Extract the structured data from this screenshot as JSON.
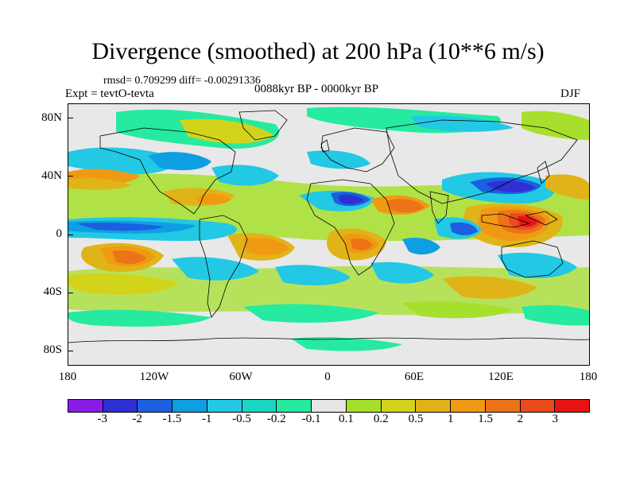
{
  "title": "Divergence (smoothed) at 200 hPa (10**6 m/s)",
  "stats": "rmsd= 0.709299 diff= -0.00291336",
  "experiment": "Expt = tevtO-tevta",
  "period": "0088kyr BP - 0000kyr BP",
  "season": "DJF",
  "lat_labels": [
    "80N",
    "40N",
    "0",
    "40S",
    "80S"
  ],
  "lon_labels": [
    "180",
    "120W",
    "60W",
    "0",
    "60E",
    "120E",
    "180"
  ],
  "colorbar": {
    "colors": [
      "#8a1ce8",
      "#2e2fd4",
      "#1c5fe0",
      "#0e9fe2",
      "#22c8e4",
      "#18d8c4",
      "#26eaa0",
      "#e6e6e6",
      "#a6e02c",
      "#d2d41c",
      "#e0b418",
      "#f09a14",
      "#ec7416",
      "#ec4a1c",
      "#e81414"
    ],
    "labels": [
      "-3",
      "-2",
      "-1.5",
      "-1",
      "-0.5",
      "-0.2",
      "-0.1",
      "0.1",
      "0.2",
      "0.5",
      "1",
      "1.5",
      "2",
      "3"
    ]
  }
}
